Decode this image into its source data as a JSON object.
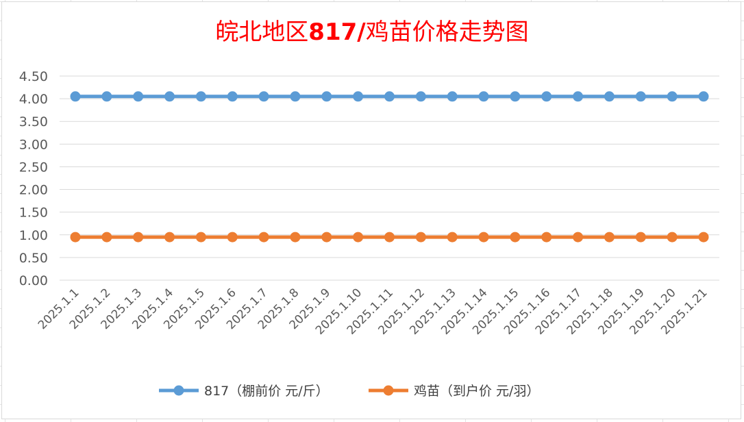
{
  "chart_data": {
    "type": "line",
    "title_prefix": "皖北地区",
    "title_bold": "817/",
    "title_suffix": "鸡苗价格走势图",
    "title_color": "#ff0000",
    "x": [
      "2025.1.1",
      "2025.1.2",
      "2025.1.3",
      "2025.1.4",
      "2025.1.5",
      "2025.1.6",
      "2025.1.7",
      "2025.1.8",
      "2025.1.9",
      "2025.1.10",
      "2025.1.11",
      "2025.1.12",
      "2025.1.13",
      "2025.1.14",
      "2025.1.15",
      "2025.1.16",
      "2025.1.17",
      "2025.1.18",
      "2025.1.19",
      "2025.1.20",
      "2025.1.21"
    ],
    "ylim": [
      0,
      4.5
    ],
    "yticks": [
      "0.00",
      "0.50",
      "1.00",
      "1.50",
      "2.00",
      "2.50",
      "3.00",
      "3.50",
      "4.00",
      "4.50"
    ],
    "grid": true,
    "legend_position": "bottom",
    "series": [
      {
        "name": "817（棚前价 元/斤）",
        "color": "#5b9bd5",
        "values": [
          4.05,
          4.05,
          4.05,
          4.05,
          4.05,
          4.05,
          4.05,
          4.05,
          4.05,
          4.05,
          4.05,
          4.05,
          4.05,
          4.05,
          4.05,
          4.05,
          4.05,
          4.05,
          4.05,
          4.05,
          4.05
        ]
      },
      {
        "name": "鸡苗（到户价 元/羽）",
        "color": "#ed7d31",
        "values": [
          0.95,
          0.95,
          0.95,
          0.95,
          0.95,
          0.95,
          0.95,
          0.95,
          0.95,
          0.95,
          0.95,
          0.95,
          0.95,
          0.95,
          0.95,
          0.95,
          0.95,
          0.95,
          0.95,
          0.95,
          0.95
        ]
      }
    ]
  }
}
